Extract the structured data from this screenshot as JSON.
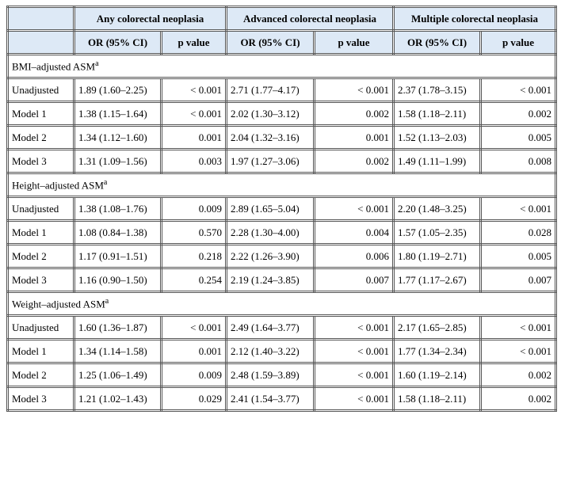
{
  "table": {
    "header": {
      "groups": [
        "Any colorectal neoplasia",
        "Advanced colorectal neoplasia",
        "Multiple colorectal neoplasia"
      ],
      "subheaders": [
        "OR (95% CI)",
        "p value",
        "OR (95% CI)",
        "p value",
        "OR (95% CI)",
        "p value"
      ]
    },
    "sections": [
      {
        "label": "BMI–adjusted ASM",
        "note": "a",
        "rows": [
          [
            "Unadjusted",
            "1.89 (1.60–2.25)",
            "< 0.001",
            "2.71 (1.77–4.17)",
            "< 0.001",
            "2.37 (1.78–3.15)",
            "< 0.001"
          ],
          [
            "Model 1",
            "1.38 (1.15–1.64)",
            "< 0.001",
            "2.02 (1.30–3.12)",
            "0.002",
            "1.58 (1.18–2.11)",
            "0.002"
          ],
          [
            "Model 2",
            "1.34 (1.12–1.60)",
            "0.001",
            "2.04 (1.32–3.16)",
            "0.001",
            "1.52 (1.13–2.03)",
            "0.005"
          ],
          [
            "Model 3",
            "1.31 (1.09–1.56)",
            "0.003",
            "1.97 (1.27–3.06)",
            "0.002",
            "1.49 (1.11–1.99)",
            "0.008"
          ]
        ]
      },
      {
        "label": "Height–adjusted ASM",
        "note": "a",
        "rows": [
          [
            "Unadjusted",
            "1.38 (1.08–1.76)",
            "0.009",
            "2.89 (1.65–5.04)",
            "< 0.001",
            "2.20 (1.48–3.25)",
            "< 0.001"
          ],
          [
            "Model 1",
            "1.08 (0.84–1.38)",
            "0.570",
            "2.28 (1.30–4.00)",
            "0.004",
            "1.57 (1.05–2.35)",
            "0.028"
          ],
          [
            "Model 2",
            "1.17 (0.91–1.51)",
            "0.218",
            "2.22 (1.26–3.90)",
            "0.006",
            "1.80 (1.19–2.71)",
            "0.005"
          ],
          [
            "Model 3",
            "1.16 (0.90–1.50)",
            "0.254",
            "2.19 (1.24–3.85)",
            "0.007",
            "1.77 (1.17–2.67)",
            "0.007"
          ]
        ]
      },
      {
        "label": "Weight–adjusted ASM",
        "note": "a",
        "rows": [
          [
            "Unadjusted",
            "1.60 (1.36–1.87)",
            "< 0.001",
            "2.49 (1.64–3.77)",
            "< 0.001",
            "2.17 (1.65–2.85)",
            "< 0.001"
          ],
          [
            "Model 1",
            "1.34 (1.14–1.58)",
            "0.001",
            "2.12 (1.40–3.22)",
            "< 0.001",
            "1.77 (1.34–2.34)",
            "< 0.001"
          ],
          [
            "Model 2",
            "1.25 (1.06–1.49)",
            "0.009",
            "2.48 (1.59–3.89)",
            "< 0.001",
            "1.60 (1.19–2.14)",
            "0.002"
          ],
          [
            "Model 3",
            "1.21 (1.02–1.43)",
            "0.029",
            "2.41 (1.54–3.77)",
            "< 0.001",
            "1.58 (1.18–2.11)",
            "0.002"
          ]
        ]
      }
    ]
  }
}
